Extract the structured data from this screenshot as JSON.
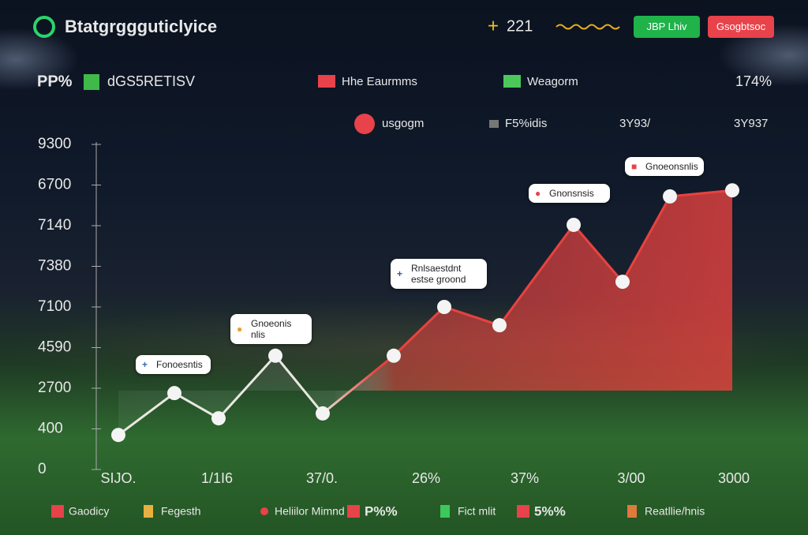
{
  "header": {
    "title": "Btatgrggguticlyice",
    "score": "221",
    "buttons": [
      {
        "text": "JBP Lhiv",
        "color": "#1fb34a"
      },
      {
        "text": "Gsogbtsoc",
        "color": "#e8424a"
      }
    ]
  },
  "chart_data": {
    "type": "line",
    "title": "PP%",
    "subtitle": "dGS5RETISV",
    "top_legend": [
      {
        "label": "Hhe Eaurmms",
        "color": "#e8424a"
      },
      {
        "label": "Weagorm",
        "color": "#4cc85a"
      }
    ],
    "top_stat": "174%",
    "stats": [
      "usgogm",
      "F5%idis",
      "3Y93/",
      "3Y937"
    ],
    "x": [
      0,
      71,
      127,
      199,
      259,
      349,
      413,
      483,
      577,
      639,
      699,
      778
    ],
    "values": [
      85,
      188,
      126,
      280,
      138,
      280,
      400,
      355,
      602,
      462,
      672,
      687
    ],
    "color": "#e8423f",
    "xlim": [
      0,
      780
    ],
    "xticks": [
      {
        "value": 0,
        "label": "SIJO."
      },
      {
        "value": 125,
        "label": "1/1I6"
      },
      {
        "value": 258,
        "label": "37/0."
      },
      {
        "value": 390,
        "label": "26%"
      },
      {
        "value": 515,
        "label": "37%"
      },
      {
        "value": 650,
        "label": "3/00"
      },
      {
        "value": 780,
        "label": "3000"
      }
    ],
    "ylim": [
      0,
      800
    ],
    "yticks": [
      0,
      {
        "value": 100,
        "label": "400"
      },
      {
        "value": 200,
        "label": "2700"
      },
      {
        "value": 300,
        "label": "4590"
      },
      {
        "value": 400,
        "label": "7100"
      },
      {
        "value": 500,
        "label": "7380"
      },
      {
        "value": 600,
        "label": "7140"
      },
      {
        "value": 700,
        "label": "6700"
      },
      {
        "value": 800,
        "label": "9300"
      }
    ],
    "annotations": [
      "Fonoesntis",
      "Gnoeonis nlis",
      "Rnlsaestdnt estse groond",
      "Gnonsnsis",
      "Gnoeonsnlis"
    ],
    "footer_legend": [
      {
        "label": "Gaodicy",
        "color": "#e8424a"
      },
      {
        "label": "Fegesth",
        "color": "#e8b040"
      },
      {
        "label": "Heliilor Mimnd",
        "color": "#e8424a"
      },
      {
        "label": "P%%",
        "color": "#e8424a"
      },
      {
        "label": "Fict mlit",
        "color": "#3cc85a"
      },
      {
        "label": "5%%",
        "color": "#e8424a"
      },
      {
        "label": "Reatllie/hnis",
        "color": "#e07a3a"
      }
    ]
  }
}
